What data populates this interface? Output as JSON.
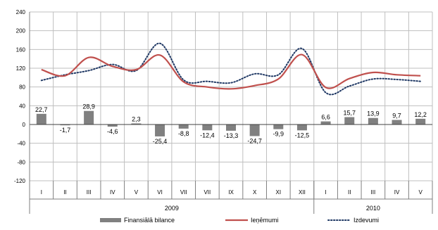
{
  "chart_data": {
    "type": "bar",
    "categories": [
      "I",
      "II",
      "III",
      "IV",
      "V",
      "VI",
      "VII",
      "VII",
      "IX",
      "X",
      "XI",
      "XII",
      "I",
      "II",
      "III",
      "IV",
      "V"
    ],
    "year_groups": [
      {
        "label": "2009",
        "start": 0,
        "end": 11
      },
      {
        "label": "2010",
        "start": 12,
        "end": 16
      }
    ],
    "ylim": [
      -120,
      240
    ],
    "yticks": [
      -120,
      -80,
      -40,
      0,
      40,
      80,
      120,
      160,
      200,
      240
    ],
    "grid": true,
    "legend_position": "bottom",
    "series": [
      {
        "name": "Finansiālā bilance",
        "kind": "bar",
        "color": "#808080",
        "values": [
          22.7,
          -1.7,
          28.9,
          -4.6,
          2.3,
          -25.4,
          -8.8,
          -12.4,
          -13.3,
          -24.7,
          -9.9,
          -12.5,
          6.6,
          15.7,
          13.9,
          9.7,
          12.2
        ],
        "labels": [
          "22,7",
          "-1,7",
          "28,9",
          "-4,6",
          "2,3",
          "-25,4",
          "-8,8",
          "-12,4",
          "-13,3",
          "-24,7",
          "-9,9",
          "-12,5",
          "6,6",
          "15,7",
          "13,9",
          "9,7",
          "12,2"
        ]
      },
      {
        "name": "Ieņēmumi",
        "kind": "line",
        "color": "#c0504d",
        "values": [
          117,
          104,
          143,
          124,
          117,
          148,
          91,
          80,
          76,
          83,
          97,
          149,
          79,
          98,
          111,
          106,
          104
        ]
      },
      {
        "name": "Izdevumi",
        "kind": "dotted-line",
        "color": "#1f3864",
        "values": [
          94,
          106,
          115,
          128,
          115,
          173,
          95,
          92,
          89,
          108,
          106,
          162,
          68,
          82,
          97,
          96,
          92
        ]
      }
    ]
  }
}
